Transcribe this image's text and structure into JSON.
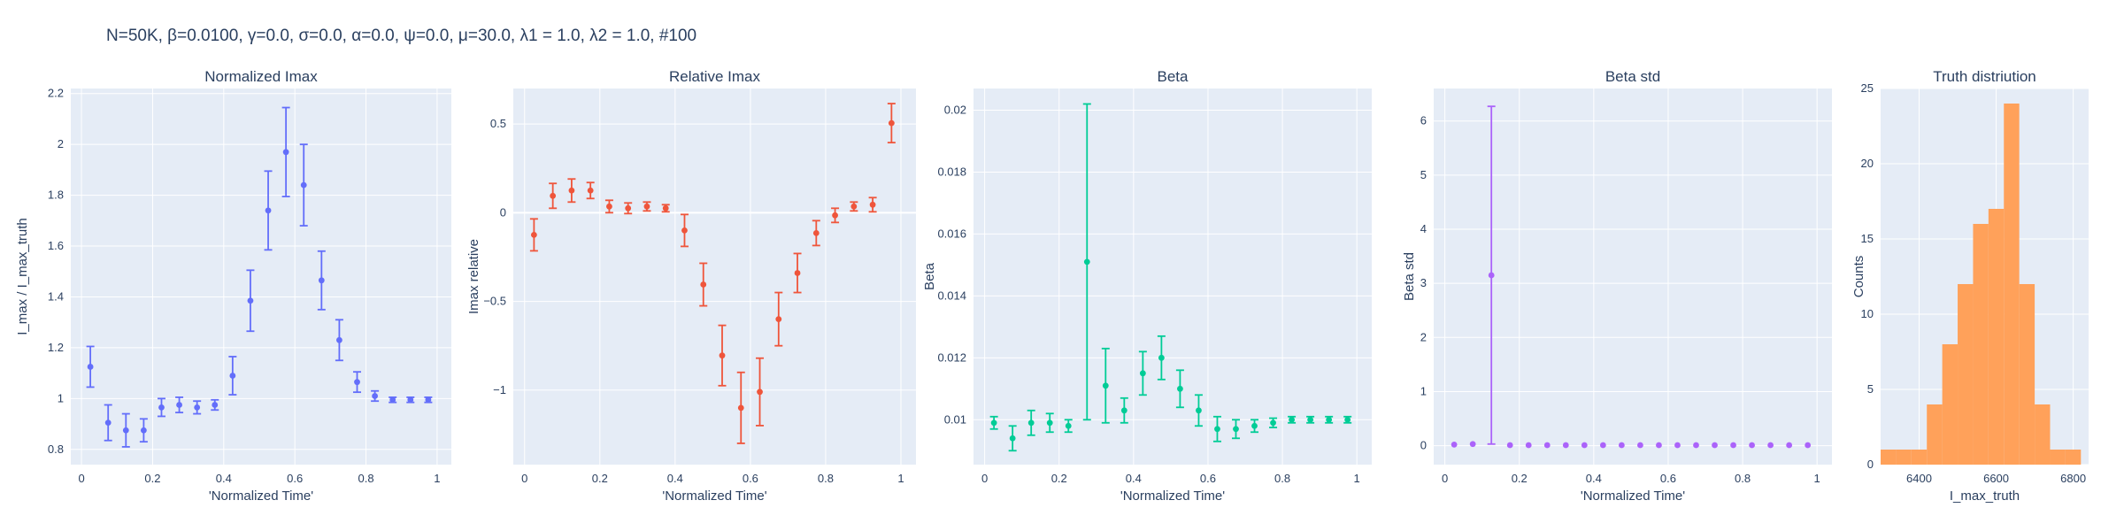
{
  "figure": {
    "title": "N=50K, β=0.0100, γ=0.0, σ=0.0,  α=0.0, ψ=0.0, μ=30.0, λ1 = 1.0, λ2 = 1.0, #100"
  },
  "chart_data": [
    {
      "type": "scatter",
      "title": "Normalized Imax",
      "xlabel": "'Normalized Time'",
      "ylabel": "I_max / I_max_truth",
      "color": "#636efa",
      "xlim": [
        -0.03,
        1.04
      ],
      "ylim": [
        0.74,
        2.22
      ],
      "xticks": [
        0,
        0.2,
        0.4,
        0.6,
        0.8,
        1
      ],
      "xtick_labels": [
        "0",
        "0.2",
        "0.4",
        "0.6",
        "0.8",
        "1"
      ],
      "yticks": [
        0.8,
        1,
        1.2,
        1.4,
        1.6,
        1.8,
        2,
        2.2
      ],
      "ytick_labels": [
        "0.8",
        "1",
        "1.2",
        "1.4",
        "1.6",
        "1.8",
        "2",
        "2.2"
      ],
      "zero_line": false,
      "x": [
        0.025,
        0.075,
        0.125,
        0.175,
        0.225,
        0.275,
        0.325,
        0.375,
        0.425,
        0.475,
        0.525,
        0.575,
        0.625,
        0.675,
        0.725,
        0.775,
        0.825,
        0.875,
        0.925,
        0.975
      ],
      "y": [
        1.125,
        0.905,
        0.875,
        0.875,
        0.965,
        0.975,
        0.965,
        0.975,
        1.09,
        1.385,
        1.74,
        1.97,
        1.84,
        1.465,
        1.23,
        1.065,
        1.01,
        0.995,
        0.995,
        0.995
      ],
      "err": [
        0.08,
        0.07,
        0.065,
        0.045,
        0.035,
        0.03,
        0.025,
        0.02,
        0.075,
        0.12,
        0.155,
        0.175,
        0.16,
        0.115,
        0.08,
        0.04,
        0.02,
        0.01,
        0.01,
        0.01
      ]
    },
    {
      "type": "scatter",
      "title": "Relative Imax",
      "xlabel": "'Normalized Time'",
      "ylabel": "Imax relative",
      "color": "#ef553b",
      "xlim": [
        -0.03,
        1.04
      ],
      "ylim": [
        -1.42,
        0.7
      ],
      "xticks": [
        0,
        0.2,
        0.4,
        0.6,
        0.8,
        1
      ],
      "xtick_labels": [
        "0",
        "0.2",
        "0.4",
        "0.6",
        "0.8",
        "1"
      ],
      "yticks": [
        -1,
        -0.5,
        0,
        0.5
      ],
      "ytick_labels": [
        "−1",
        "−0.5",
        "0",
        "0.5"
      ],
      "zero_line": true,
      "x": [
        0.025,
        0.075,
        0.125,
        0.175,
        0.225,
        0.275,
        0.325,
        0.375,
        0.425,
        0.475,
        0.525,
        0.575,
        0.625,
        0.675,
        0.725,
        0.775,
        0.825,
        0.875,
        0.925,
        0.975
      ],
      "y": [
        -0.125,
        0.095,
        0.125,
        0.125,
        0.035,
        0.025,
        0.035,
        0.025,
        -0.1,
        -0.405,
        -0.805,
        -1.1,
        -1.01,
        -0.6,
        -0.34,
        -0.115,
        -0.015,
        0.035,
        0.045,
        0.505
      ],
      "err": [
        0.09,
        0.07,
        0.065,
        0.045,
        0.035,
        0.03,
        0.025,
        0.02,
        0.09,
        0.12,
        0.17,
        0.2,
        0.19,
        0.15,
        0.11,
        0.07,
        0.04,
        0.025,
        0.04,
        0.11
      ]
    },
    {
      "type": "scatter",
      "title": "Beta",
      "xlabel": "'Normalized Time'",
      "ylabel": "Beta",
      "color": "#00cc96",
      "xlim": [
        -0.03,
        1.04
      ],
      "ylim": [
        0.00855,
        0.0207
      ],
      "xticks": [
        0,
        0.2,
        0.4,
        0.6,
        0.8,
        1
      ],
      "xtick_labels": [
        "0",
        "0.2",
        "0.4",
        "0.6",
        "0.8",
        "1"
      ],
      "yticks": [
        0.01,
        0.012,
        0.014,
        0.016,
        0.018,
        0.02
      ],
      "ytick_labels": [
        "0.01",
        "0.012",
        "0.014",
        "0.016",
        "0.018",
        "0.02"
      ],
      "zero_line": false,
      "x": [
        0.025,
        0.075,
        0.125,
        0.175,
        0.225,
        0.275,
        0.325,
        0.375,
        0.425,
        0.475,
        0.525,
        0.575,
        0.625,
        0.675,
        0.725,
        0.775,
        0.825,
        0.875,
        0.925,
        0.975
      ],
      "y": [
        0.0099,
        0.0094,
        0.0099,
        0.0099,
        0.0098,
        0.0151,
        0.0111,
        0.0103,
        0.0115,
        0.012,
        0.011,
        0.0103,
        0.0097,
        0.0097,
        0.0098,
        0.0099,
        0.01,
        0.01,
        0.01,
        0.01
      ],
      "err": [
        0.0002,
        0.0004,
        0.0004,
        0.0003,
        0.0002,
        0.0051,
        0.0012,
        0.0004,
        0.0007,
        0.0007,
        0.0006,
        0.0005,
        0.0004,
        0.0003,
        0.0002,
        0.00015,
        0.0001,
        0.0001,
        0.0001,
        0.0001
      ]
    },
    {
      "type": "scatter",
      "title": "Beta std",
      "xlabel": "'Normalized Time'",
      "ylabel": "Beta std",
      "color": "#ab63fa",
      "xlim": [
        -0.03,
        1.04
      ],
      "ylim": [
        -0.35,
        6.6
      ],
      "xticks": [
        0,
        0.2,
        0.4,
        0.6,
        0.8,
        1
      ],
      "xtick_labels": [
        "0",
        "0.2",
        "0.4",
        "0.6",
        "0.8",
        "1"
      ],
      "yticks": [
        0,
        1,
        2,
        3,
        4,
        5,
        6
      ],
      "ytick_labels": [
        "0",
        "1",
        "2",
        "3",
        "4",
        "5",
        "6"
      ],
      "zero_line": false,
      "x": [
        0.025,
        0.075,
        0.125,
        0.175,
        0.225,
        0.275,
        0.325,
        0.375,
        0.425,
        0.475,
        0.525,
        0.575,
        0.625,
        0.675,
        0.725,
        0.775,
        0.825,
        0.875,
        0.925,
        0.975
      ],
      "y": [
        0.02,
        0.03,
        3.15,
        0.01,
        0.01,
        0.01,
        0.01,
        0.01,
        0.01,
        0.01,
        0.01,
        0.01,
        0.01,
        0.01,
        0.01,
        0.01,
        0.01,
        0.01,
        0.01,
        0.01
      ],
      "err": [
        0,
        0,
        3.12,
        0,
        0,
        0,
        0,
        0,
        0,
        0,
        0,
        0,
        0,
        0,
        0,
        0,
        0,
        0,
        0,
        0
      ]
    },
    {
      "type": "bar",
      "title": "Truth distriution",
      "xlabel": "I_max_truth",
      "ylabel": "Counts",
      "color": "#ffa15a",
      "xlim": [
        6300,
        6840
      ],
      "ylim": [
        0,
        25
      ],
      "xticks": [
        6400,
        6600,
        6800
      ],
      "xtick_labels": [
        "6400",
        "6600",
        "6800"
      ],
      "yticks": [
        0,
        5,
        10,
        15,
        20,
        25
      ],
      "ytick_labels": [
        "0",
        "5",
        "10",
        "15",
        "20",
        "25"
      ],
      "bin_width": 40,
      "bin_starts": [
        6300,
        6340,
        6380,
        6420,
        6460,
        6500,
        6540,
        6580,
        6620,
        6660,
        6700,
        6740,
        6780,
        6820
      ],
      "counts": [
        1,
        1,
        1,
        4,
        8,
        12,
        16,
        17,
        24,
        12,
        4,
        1,
        1,
        0
      ]
    }
  ]
}
